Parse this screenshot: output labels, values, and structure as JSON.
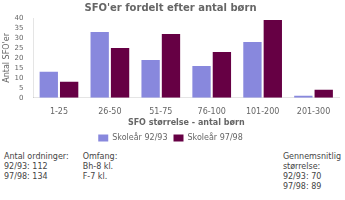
{
  "chart_data": {
    "type": "bar",
    "title": "SFO'er fordelt efter antal børn",
    "xlabel": "SFO størrelse - antal børn",
    "ylabel": "Antal SFO'er",
    "categories": [
      "1-25",
      "26-50",
      "51-75",
      "76-100",
      "101-200",
      "201-300"
    ],
    "series": [
      {
        "name": "Skoleår 92/93",
        "color": "#8888dd",
        "values": [
          13,
          33,
          19,
          16,
          28,
          1
        ]
      },
      {
        "name": "Skoleår 97/98",
        "color": "#660044",
        "values": [
          8,
          25,
          32,
          23,
          39,
          4
        ]
      }
    ],
    "ylim": [
      0,
      40
    ],
    "yticks": [
      0,
      5,
      10,
      15,
      20,
      25,
      30,
      35,
      40
    ],
    "grid": false,
    "legend": "bottom",
    "annotations": [
      [
        "Antal ordninger:",
        "92/93: 112",
        "97/98: 134"
      ],
      [
        "Omfang:",
        "Bh-8 kl.",
        "F-7 kl."
      ],
      [
        "Gennemsnitlig",
        "størrelse:",
        "92/93: 70",
        "97/98: 89"
      ]
    ]
  }
}
